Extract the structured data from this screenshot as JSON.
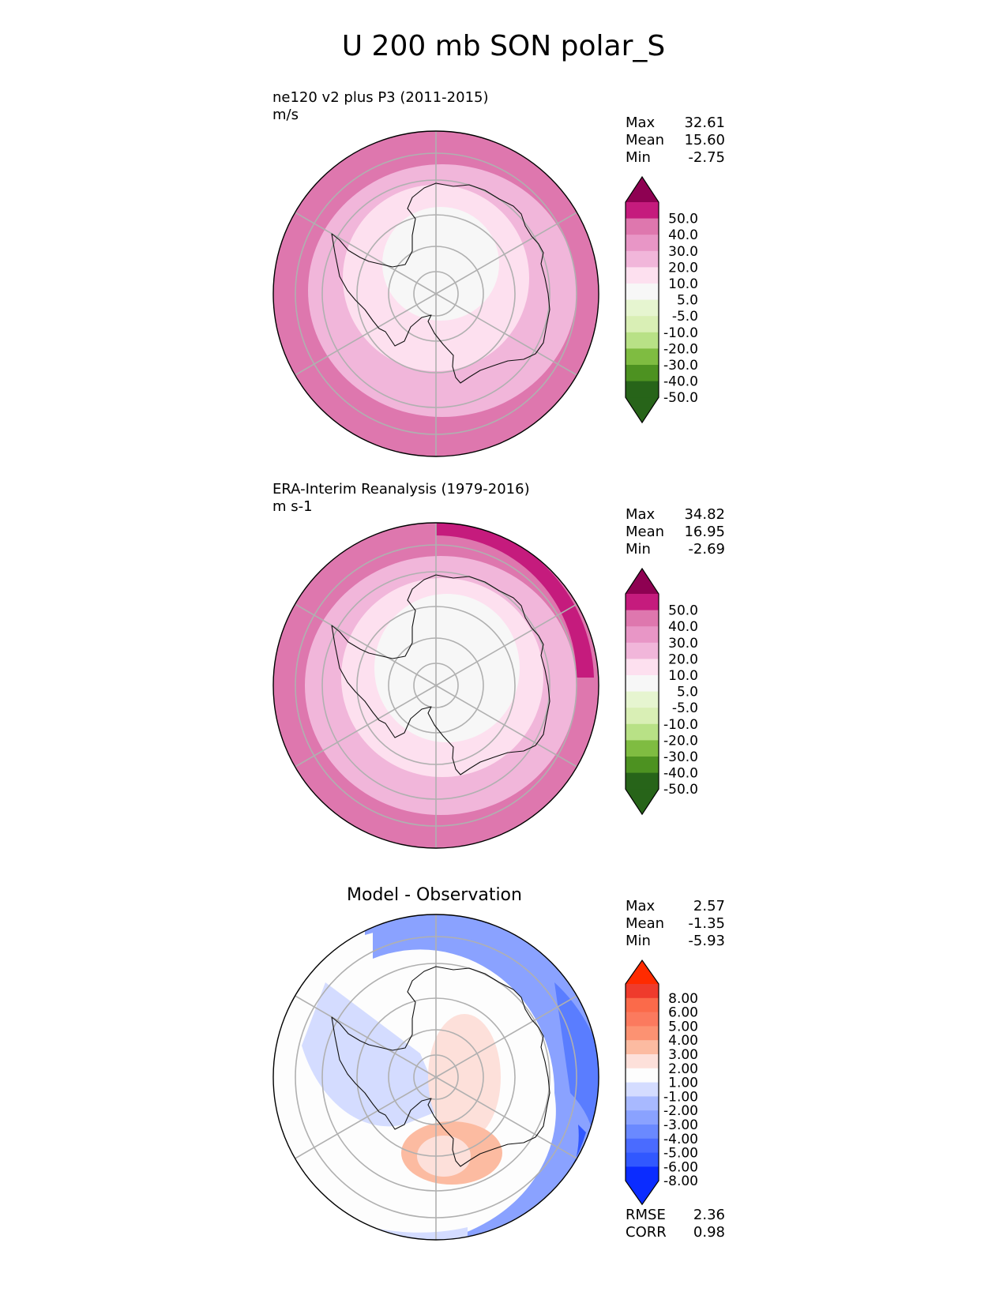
{
  "figure": {
    "title": "U 200 mb SON polar_S"
  },
  "colors": {
    "pink_scale": [
      "#276419",
      "#4d9221",
      "#7fbc41",
      "#b8e186",
      "#e6f5d0",
      "#f7f7f7",
      "#fde0ef",
      "#f1b6da",
      "#de77ae",
      "#c51b7d",
      "#8e0152"
    ],
    "diff_scale": [
      "#0b2cff",
      "#3158ff",
      "#5a7dff",
      "#8aa2ff",
      "#b2c2ff",
      "#d4dcff",
      "#fdfdfd",
      "#fde0da",
      "#fcbba1",
      "#fc9272",
      "#fb6a4a",
      "#ef3b2c",
      "#ff2b00"
    ],
    "grid": "#b0b0b0"
  },
  "panels": [
    {
      "id": "test",
      "title_lines": [
        "ne120 v2 plus P3 (2011-2015)",
        "m/s"
      ],
      "stats": [
        {
          "label": "Max",
          "value": "32.61"
        },
        {
          "label": "Mean",
          "value": "15.60"
        },
        {
          "label": "Min",
          "value": "-2.75"
        }
      ],
      "colorbar_ticks": [
        "50.0",
        "40.0",
        "30.0",
        "20.0",
        "10.0",
        "5.0",
        "-5.0",
        "-10.0",
        "-20.0",
        "-30.0",
        "-40.0",
        "-50.0"
      ]
    },
    {
      "id": "reference",
      "title_lines": [
        "ERA-Interim Reanalysis (1979-2016)",
        "m s-1"
      ],
      "stats": [
        {
          "label": "Max",
          "value": "34.82"
        },
        {
          "label": "Mean",
          "value": "16.95"
        },
        {
          "label": "Min",
          "value": "-2.69"
        }
      ],
      "colorbar_ticks": [
        "50.0",
        "40.0",
        "30.0",
        "20.0",
        "10.0",
        "5.0",
        "-5.0",
        "-10.0",
        "-20.0",
        "-30.0",
        "-40.0",
        "-50.0"
      ]
    },
    {
      "id": "diff",
      "center_title": "Model - Observation",
      "stats": [
        {
          "label": "Max",
          "value": "2.57"
        },
        {
          "label": "Mean",
          "value": "-1.35"
        },
        {
          "label": "Min",
          "value": "-5.93"
        }
      ],
      "colorbar_ticks": [
        "8.00",
        "6.00",
        "5.00",
        "4.00",
        "3.00",
        "2.00",
        "1.00",
        "-1.00",
        "-2.00",
        "-3.00",
        "-4.00",
        "-5.00",
        "-6.00",
        "-8.00"
      ],
      "metrics": [
        {
          "label": "RMSE",
          "value": "2.36"
        },
        {
          "label": "CORR",
          "value": "0.98"
        }
      ]
    }
  ],
  "chart_data": [
    {
      "type": "heatmap",
      "projection": "south polar stereographic",
      "title": "ne120 v2 plus P3 (2011-2015)",
      "units": "m/s",
      "levels": [
        -50,
        -40,
        -30,
        -20,
        -10,
        -5,
        5,
        10,
        20,
        30,
        40,
        50
      ],
      "zones": [
        {
          "region": "polar cap",
          "range": [
            -5,
            5
          ]
        },
        {
          "region": "inner ring",
          "range": [
            5,
            10
          ]
        },
        {
          "region": "middle ring",
          "range": [
            10,
            20
          ]
        },
        {
          "region": "outer ring",
          "range": [
            20,
            30
          ]
        }
      ],
      "max": 32.61,
      "mean": 15.6,
      "min": -2.75
    },
    {
      "type": "heatmap",
      "projection": "south polar stereographic",
      "title": "ERA-Interim Reanalysis (1979-2016)",
      "units": "m s-1",
      "levels": [
        -50,
        -40,
        -30,
        -20,
        -10,
        -5,
        5,
        10,
        20,
        30,
        40,
        50
      ],
      "zones": [
        {
          "region": "polar cap",
          "range": [
            -5,
            5
          ]
        },
        {
          "region": "inner ring",
          "range": [
            5,
            10
          ]
        },
        {
          "region": "middle ring",
          "range": [
            10,
            20
          ]
        },
        {
          "region": "outer ring",
          "range": [
            20,
            30
          ]
        },
        {
          "region": "edge sector",
          "range": [
            30,
            40
          ]
        }
      ],
      "max": 34.82,
      "mean": 16.95,
      "min": -2.69
    },
    {
      "type": "heatmap",
      "projection": "south polar stereographic",
      "title": "Model - Observation",
      "levels": [
        -8,
        -6,
        -5,
        -4,
        -3,
        -2,
        -1,
        1,
        2,
        3,
        4,
        5,
        6,
        8
      ],
      "max": 2.57,
      "mean": -1.35,
      "min": -5.93,
      "rmse": 2.36,
      "corr": 0.98
    }
  ]
}
